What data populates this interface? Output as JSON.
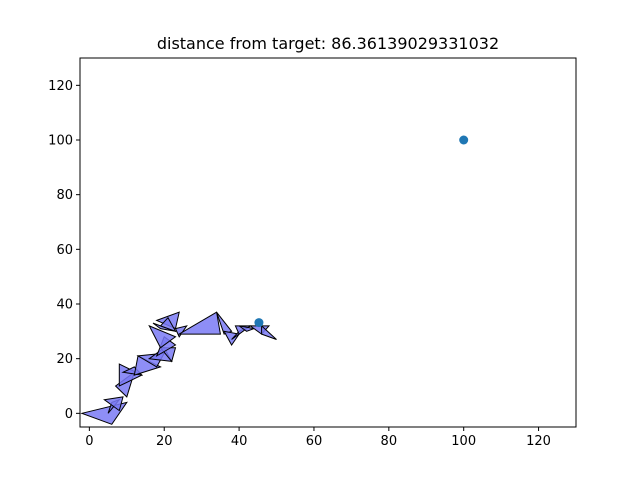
{
  "chart_data": {
    "type": "scatter",
    "title": "distance from target: 86.36139029331032",
    "xlabel": "",
    "ylabel": "",
    "xlim": [
      -2.5,
      130
    ],
    "ylim": [
      -5,
      130
    ],
    "xticks": [
      0,
      20,
      40,
      60,
      80,
      100,
      120
    ],
    "yticks": [
      0,
      20,
      40,
      60,
      80,
      100,
      120
    ],
    "grid": false,
    "points": [
      {
        "x": 100,
        "y": 100
      },
      {
        "x": 45.3,
        "y": 33.2
      }
    ],
    "point_color": "#1f77b4",
    "triangle_fill": "#7a7af5",
    "triangle_stroke": "#000000",
    "triangles": [
      [
        [
          -2,
          0
        ],
        [
          10,
          4
        ],
        [
          6,
          -4
        ]
      ],
      [
        [
          5,
          0
        ],
        [
          8,
          5
        ],
        [
          6,
          4
        ]
      ],
      [
        [
          4,
          5
        ],
        [
          9,
          6
        ],
        [
          8,
          1
        ]
      ],
      [
        [
          7,
          10
        ],
        [
          12,
          15
        ],
        [
          10,
          6
        ]
      ],
      [
        [
          8,
          10
        ],
        [
          8,
          18
        ],
        [
          14,
          14
        ]
      ],
      [
        [
          9,
          15
        ],
        [
          14,
          14
        ],
        [
          12,
          17
        ]
      ],
      [
        [
          12,
          14
        ],
        [
          19,
          17
        ],
        [
          13,
          21
        ]
      ],
      [
        [
          13,
          21
        ],
        [
          20,
          22
        ],
        [
          18,
          17
        ]
      ],
      [
        [
          16,
          20
        ],
        [
          22,
          19
        ],
        [
          20,
          24
        ]
      ],
      [
        [
          19,
          24
        ],
        [
          23,
          24
        ],
        [
          22,
          19
        ]
      ],
      [
        [
          20,
          28
        ],
        [
          18,
          21
        ],
        [
          23,
          25
        ]
      ],
      [
        [
          16,
          32
        ],
        [
          19,
          24
        ],
        [
          23,
          28
        ]
      ],
      [
        [
          17,
          33
        ],
        [
          23,
          30
        ],
        [
          19,
          31
        ]
      ],
      [
        [
          18,
          34
        ],
        [
          24,
          37
        ],
        [
          23,
          31
        ]
      ],
      [
        [
          21,
          35
        ],
        [
          23,
          30
        ],
        [
          19,
          32
        ]
      ],
      [
        [
          23,
          31
        ],
        [
          26,
          32
        ],
        [
          24,
          28
        ]
      ],
      [
        [
          24,
          29
        ],
        [
          34,
          37
        ],
        [
          35,
          29
        ]
      ],
      [
        [
          34,
          37
        ],
        [
          36,
          29
        ],
        [
          38,
          30
        ]
      ],
      [
        [
          36,
          30
        ],
        [
          38,
          25
        ],
        [
          40,
          29
        ]
      ],
      [
        [
          38,
          27
        ],
        [
          43,
          32
        ],
        [
          40,
          30
        ]
      ],
      [
        [
          40,
          29
        ],
        [
          43,
          32
        ],
        [
          39,
          32
        ]
      ],
      [
        [
          40,
          32
        ],
        [
          44,
          31
        ],
        [
          42,
          30
        ]
      ],
      [
        [
          43,
          32
        ],
        [
          48,
          32
        ],
        [
          46,
          29
        ]
      ],
      [
        [
          46,
          29
        ],
        [
          50,
          27
        ],
        [
          46,
          32
        ]
      ]
    ]
  }
}
